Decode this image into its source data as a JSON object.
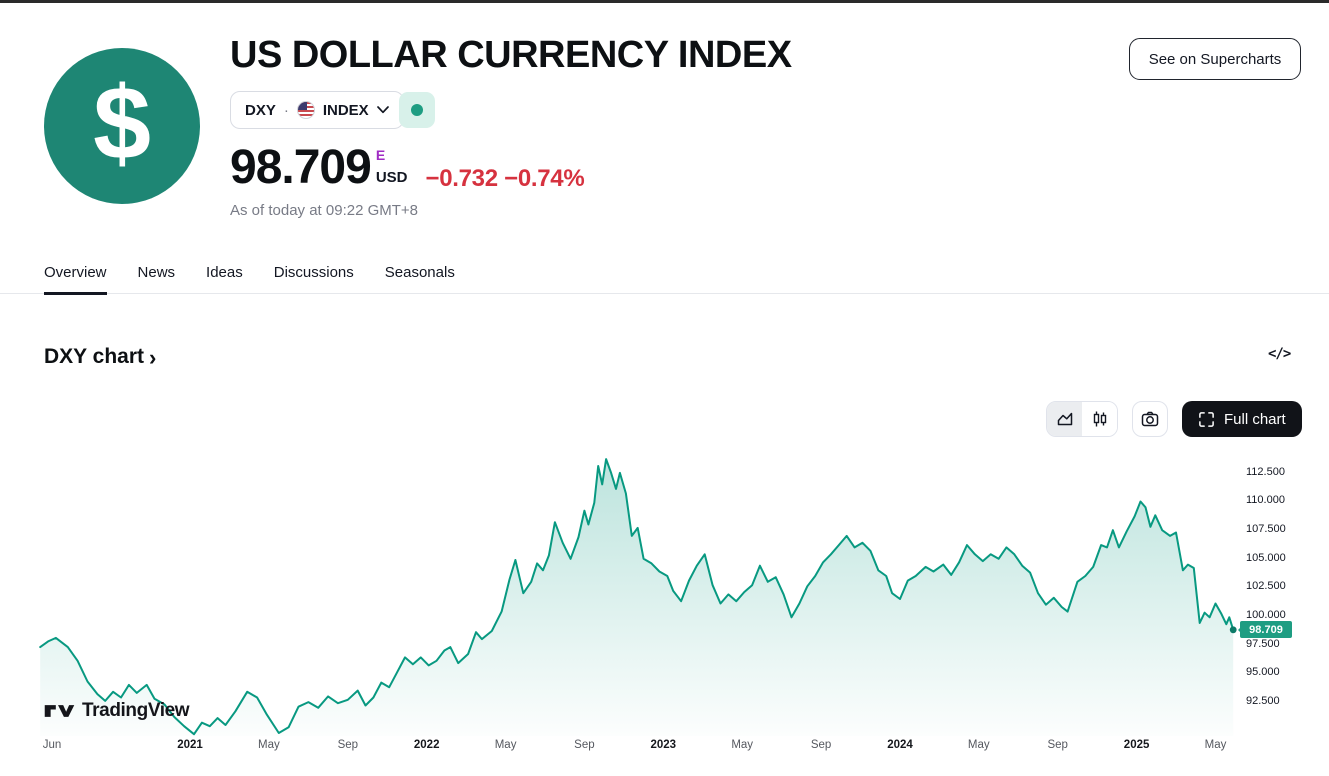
{
  "colors": {
    "accent_teal": "#089981",
    "logo_teal": "#1E8674",
    "price_label_bg": "#1e9d82",
    "negative_red": "#D6323F",
    "flag_purple": "#A02BC4",
    "text": "#131722",
    "muted_text": "#787B86",
    "border": "#E0E3EB"
  },
  "icons": {
    "symbol_logo": "dollar-logo-icon",
    "country": "us-flag-icon",
    "dropdown": "chevron-down-icon",
    "market_status": "market-open-dot-icon",
    "chart_style_1": "area-chart-icon",
    "chart_style_2": "candlestick-chart-icon",
    "snapshot": "camera-icon",
    "fullscreen": "fullscreen-brackets-icon",
    "embed": "embed-code-icon",
    "brand": "tradingview-logo-icon"
  },
  "header": {
    "logo_glyph": "$",
    "title": "US DOLLAR CURRENCY INDEX",
    "symbol_pill": {
      "ticker": "DXY",
      "separator": "·",
      "exchange": "INDEX"
    },
    "supercharts_button": "See on Supercharts",
    "price": {
      "value": "98.709",
      "flag": "E",
      "currency": "USD",
      "change": "−0.732 −0.74%",
      "as_of": "As of today at 09:22 GMT+8"
    }
  },
  "tabs": [
    {
      "label": "Overview",
      "active": true
    },
    {
      "label": "News",
      "active": false
    },
    {
      "label": "Ideas",
      "active": false
    },
    {
      "label": "Discussions",
      "active": false
    },
    {
      "label": "Seasonals",
      "active": false
    }
  ],
  "section": {
    "title": "DXY chart",
    "chevron": "›",
    "embed_glyph": "</>"
  },
  "toolbar": {
    "full_chart_label": "Full chart"
  },
  "watermark_text": "TradingView",
  "chart_data": {
    "type": "area",
    "title": "DXY chart",
    "series_name": "DXY Index",
    "grid": false,
    "legend": false,
    "x_unit": "months since Jun 2020",
    "xlim": [
      -0.6,
      60
    ],
    "ylim": [
      89.5,
      114.4
    ],
    "line_color": "#089981",
    "fill_top": "rgba(8,153,129,0.28)",
    "fill_bottom": "rgba(8,153,129,0.01)",
    "last_price": 98.709,
    "last_price_label": "98.709",
    "y_ticks": [
      {
        "value": 112.5,
        "label": "112.500"
      },
      {
        "value": 110.0,
        "label": "110.000"
      },
      {
        "value": 107.5,
        "label": "107.500"
      },
      {
        "value": 105.0,
        "label": "105.000"
      },
      {
        "value": 102.5,
        "label": "102.500"
      },
      {
        "value": 100.0,
        "label": "100.000"
      },
      {
        "value": 97.5,
        "label": "97.500"
      },
      {
        "value": 95.0,
        "label": "95.000"
      },
      {
        "value": 92.5,
        "label": "92.500"
      }
    ],
    "x_ticks": [
      {
        "t": 0,
        "label": "Jun",
        "year": false
      },
      {
        "t": 7,
        "label": "2021",
        "year": true
      },
      {
        "t": 11,
        "label": "May",
        "year": false
      },
      {
        "t": 15,
        "label": "Sep",
        "year": false
      },
      {
        "t": 19,
        "label": "2022",
        "year": true
      },
      {
        "t": 23,
        "label": "May",
        "year": false
      },
      {
        "t": 27,
        "label": "Sep",
        "year": false
      },
      {
        "t": 31,
        "label": "2023",
        "year": true
      },
      {
        "t": 35,
        "label": "May",
        "year": false
      },
      {
        "t": 39,
        "label": "Sep",
        "year": false
      },
      {
        "t": 43,
        "label": "2024",
        "year": true
      },
      {
        "t": 47,
        "label": "May",
        "year": false
      },
      {
        "t": 51,
        "label": "Sep",
        "year": false
      },
      {
        "t": 55,
        "label": "2025",
        "year": true
      },
      {
        "t": 59,
        "label": "May",
        "year": false
      }
    ],
    "points": [
      [
        -0.6,
        97.2
      ],
      [
        -0.2,
        97.7
      ],
      [
        0.2,
        98.0
      ],
      [
        0.8,
        97.2
      ],
      [
        1.3,
        96.0
      ],
      [
        1.8,
        94.2
      ],
      [
        2.3,
        93.1
      ],
      [
        2.7,
        92.5
      ],
      [
        3.1,
        93.3
      ],
      [
        3.5,
        92.8
      ],
      [
        3.9,
        93.9
      ],
      [
        4.3,
        93.2
      ],
      [
        4.8,
        93.9
      ],
      [
        5.2,
        92.7
      ],
      [
        5.7,
        92.2
      ],
      [
        6.2,
        91.1
      ],
      [
        6.7,
        90.3
      ],
      [
        7.2,
        89.6
      ],
      [
        7.6,
        90.6
      ],
      [
        8.0,
        90.3
      ],
      [
        8.4,
        91.0
      ],
      [
        8.8,
        90.4
      ],
      [
        9.3,
        91.6
      ],
      [
        9.9,
        93.3
      ],
      [
        10.4,
        92.8
      ],
      [
        10.9,
        91.3
      ],
      [
        11.5,
        89.7
      ],
      [
        12.0,
        90.2
      ],
      [
        12.5,
        92.0
      ],
      [
        13.0,
        92.4
      ],
      [
        13.5,
        91.9
      ],
      [
        14.0,
        92.9
      ],
      [
        14.5,
        92.3
      ],
      [
        15.0,
        92.6
      ],
      [
        15.5,
        93.4
      ],
      [
        15.9,
        92.1
      ],
      [
        16.3,
        92.8
      ],
      [
        16.7,
        94.1
      ],
      [
        17.1,
        93.7
      ],
      [
        17.5,
        95.0
      ],
      [
        17.9,
        96.3
      ],
      [
        18.3,
        95.7
      ],
      [
        18.7,
        96.3
      ],
      [
        19.1,
        95.6
      ],
      [
        19.5,
        96.0
      ],
      [
        19.9,
        96.9
      ],
      [
        20.2,
        97.2
      ],
      [
        20.6,
        95.8
      ],
      [
        21.1,
        96.6
      ],
      [
        21.5,
        98.5
      ],
      [
        21.8,
        97.9
      ],
      [
        22.3,
        98.6
      ],
      [
        22.8,
        100.3
      ],
      [
        23.2,
        103.1
      ],
      [
        23.5,
        104.8
      ],
      [
        23.9,
        101.9
      ],
      [
        24.3,
        102.9
      ],
      [
        24.6,
        104.5
      ],
      [
        24.9,
        103.9
      ],
      [
        25.2,
        105.2
      ],
      [
        25.5,
        108.1
      ],
      [
        25.9,
        106.3
      ],
      [
        26.3,
        104.9
      ],
      [
        26.7,
        106.8
      ],
      [
        27.0,
        109.1
      ],
      [
        27.2,
        107.9
      ],
      [
        27.5,
        109.8
      ],
      [
        27.7,
        113.0
      ],
      [
        27.9,
        111.4
      ],
      [
        28.1,
        113.6
      ],
      [
        28.35,
        112.4
      ],
      [
        28.6,
        111.0
      ],
      [
        28.8,
        112.4
      ],
      [
        29.1,
        110.6
      ],
      [
        29.4,
        106.9
      ],
      [
        29.7,
        107.6
      ],
      [
        30.0,
        104.9
      ],
      [
        30.4,
        104.5
      ],
      [
        30.8,
        103.8
      ],
      [
        31.2,
        103.4
      ],
      [
        31.5,
        102.1
      ],
      [
        31.9,
        101.2
      ],
      [
        32.3,
        103.0
      ],
      [
        32.7,
        104.3
      ],
      [
        33.1,
        105.3
      ],
      [
        33.5,
        102.6
      ],
      [
        33.9,
        101.0
      ],
      [
        34.3,
        101.8
      ],
      [
        34.7,
        101.2
      ],
      [
        35.1,
        102.0
      ],
      [
        35.5,
        102.6
      ],
      [
        35.9,
        104.3
      ],
      [
        36.3,
        102.9
      ],
      [
        36.7,
        103.3
      ],
      [
        37.1,
        101.8
      ],
      [
        37.5,
        99.8
      ],
      [
        37.9,
        101.0
      ],
      [
        38.3,
        102.5
      ],
      [
        38.7,
        103.4
      ],
      [
        39.1,
        104.6
      ],
      [
        39.5,
        105.3
      ],
      [
        39.9,
        106.1
      ],
      [
        40.3,
        106.9
      ],
      [
        40.7,
        105.9
      ],
      [
        41.1,
        106.3
      ],
      [
        41.5,
        105.6
      ],
      [
        41.9,
        103.9
      ],
      [
        42.3,
        103.4
      ],
      [
        42.6,
        101.9
      ],
      [
        43.0,
        101.4
      ],
      [
        43.4,
        103.0
      ],
      [
        43.8,
        103.4
      ],
      [
        44.3,
        104.2
      ],
      [
        44.7,
        103.8
      ],
      [
        45.2,
        104.4
      ],
      [
        45.6,
        103.5
      ],
      [
        46.0,
        104.6
      ],
      [
        46.4,
        106.1
      ],
      [
        46.8,
        105.3
      ],
      [
        47.2,
        104.7
      ],
      [
        47.6,
        105.3
      ],
      [
        48.0,
        104.9
      ],
      [
        48.4,
        105.9
      ],
      [
        48.8,
        105.3
      ],
      [
        49.2,
        104.3
      ],
      [
        49.6,
        103.7
      ],
      [
        50.0,
        101.9
      ],
      [
        50.4,
        100.9
      ],
      [
        50.8,
        101.5
      ],
      [
        51.2,
        100.7
      ],
      [
        51.5,
        100.3
      ],
      [
        52.0,
        102.9
      ],
      [
        52.4,
        103.4
      ],
      [
        52.8,
        104.2
      ],
      [
        53.2,
        106.1
      ],
      [
        53.5,
        105.9
      ],
      [
        53.8,
        107.4
      ],
      [
        54.1,
        105.9
      ],
      [
        54.5,
        107.3
      ],
      [
        54.9,
        108.6
      ],
      [
        55.2,
        109.9
      ],
      [
        55.45,
        109.4
      ],
      [
        55.7,
        107.7
      ],
      [
        55.95,
        108.7
      ],
      [
        56.3,
        107.4
      ],
      [
        56.7,
        106.9
      ],
      [
        57.0,
        107.2
      ],
      [
        57.35,
        103.9
      ],
      [
        57.6,
        104.4
      ],
      [
        57.9,
        104.1
      ],
      [
        58.2,
        99.3
      ],
      [
        58.45,
        100.2
      ],
      [
        58.7,
        99.8
      ],
      [
        59.0,
        101.0
      ],
      [
        59.3,
        100.1
      ],
      [
        59.55,
        99.2
      ],
      [
        59.7,
        99.8
      ],
      [
        59.9,
        98.709
      ]
    ]
  }
}
